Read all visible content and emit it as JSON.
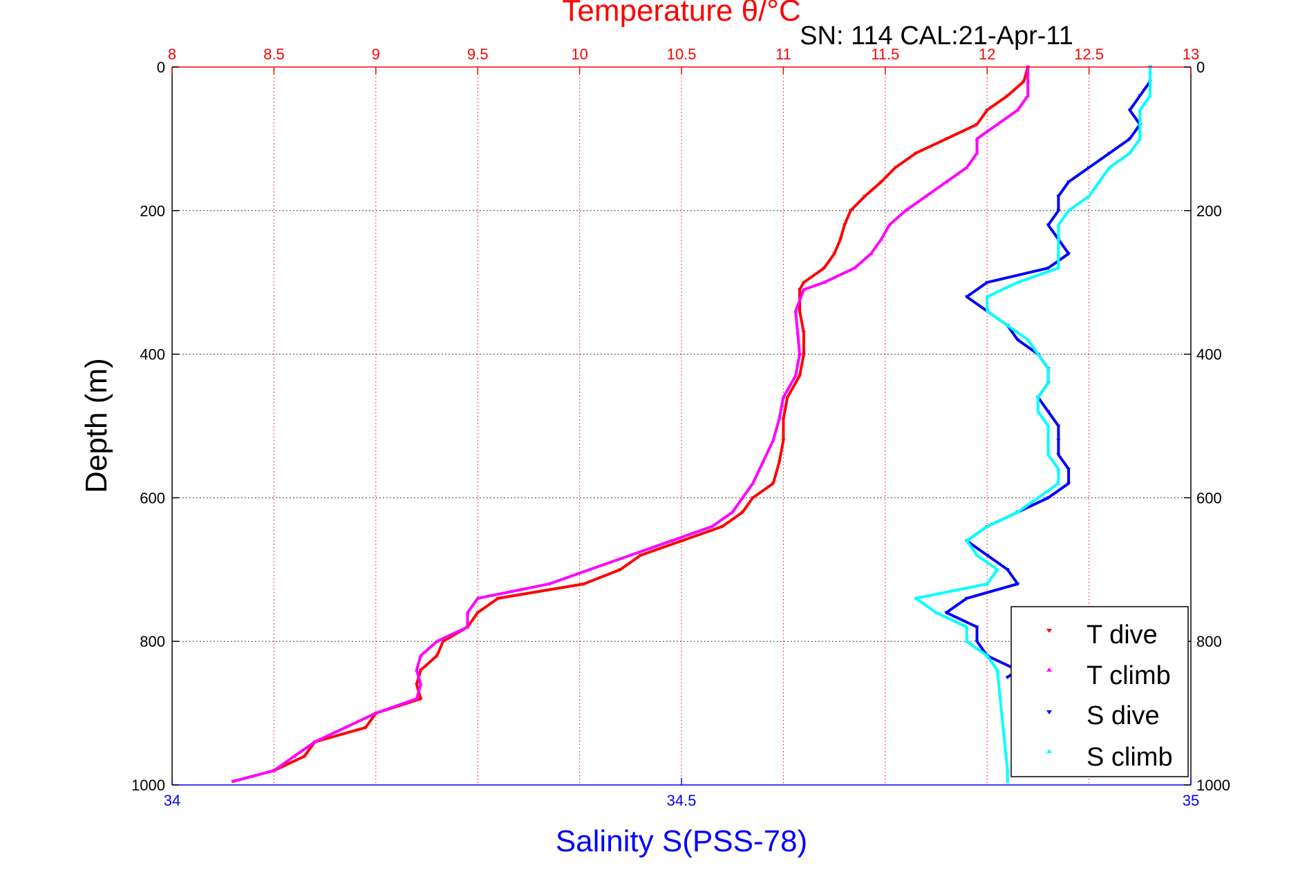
{
  "chart_data": {
    "type": "scatter",
    "title": "Temperature θ/°C",
    "subtitle": "SN: 114  CAL:21-Apr-11",
    "xlabel": "Salinity S(PSS-78)",
    "ylabel": "Depth (m)",
    "temperature_axis": {
      "label": "Temperature θ/°C",
      "range": [
        8,
        13
      ],
      "ticks": [
        8,
        8.5,
        9,
        9.5,
        10,
        10.5,
        11,
        11.5,
        12,
        12.5,
        13
      ],
      "tick_labels": [
        "8",
        "8.5",
        "9",
        "9.5",
        "10",
        "10.5",
        "11",
        "11.5",
        "12",
        "12.5",
        "13"
      ],
      "color": "#ff0000",
      "grid": true
    },
    "salinity_axis": {
      "label": "Salinity S(PSS-78)",
      "range": [
        34,
        35
      ],
      "ticks": [
        34,
        34.5,
        35
      ],
      "tick_labels": [
        "34",
        "34.5",
        "35"
      ],
      "color": "#0000ff"
    },
    "depth_axis": {
      "label": "Depth (m)",
      "range": [
        0,
        1000
      ],
      "reversed": true,
      "ticks": [
        0,
        200,
        400,
        600,
        800,
        1000
      ],
      "tick_labels": [
        "0",
        "200",
        "400",
        "600",
        "800",
        "1000"
      ],
      "grid": true
    },
    "legend": {
      "position": "bottom-right"
    },
    "series": [
      {
        "name": "T dive",
        "axis": "temperature",
        "color": "#ff0000",
        "marker": "triangle-down",
        "depth": [
          0,
          20,
          40,
          60,
          80,
          100,
          120,
          140,
          160,
          180,
          200,
          220,
          240,
          260,
          280,
          300,
          310,
          340,
          370,
          400,
          430,
          460,
          490,
          520,
          550,
          580,
          600,
          620,
          640,
          660,
          680,
          700,
          720,
          740,
          760,
          780,
          800,
          820,
          840,
          860,
          880,
          900,
          920,
          940,
          960,
          980,
          995
        ],
        "temp": [
          12.2,
          12.18,
          12.1,
          12.0,
          11.95,
          11.8,
          11.65,
          11.55,
          11.48,
          11.4,
          11.33,
          11.3,
          11.28,
          11.25,
          11.2,
          11.1,
          11.08,
          11.08,
          11.1,
          11.1,
          11.08,
          11.02,
          11.0,
          11.0,
          10.98,
          10.95,
          10.85,
          10.8,
          10.7,
          10.5,
          10.3,
          10.2,
          10.02,
          9.6,
          9.5,
          9.45,
          9.33,
          9.3,
          9.22,
          9.2,
          9.22,
          9.0,
          8.95,
          8.7,
          8.65,
          8.5,
          8.3
        ]
      },
      {
        "name": "T climb",
        "axis": "temperature",
        "color": "#ff00ff",
        "marker": "triangle-up",
        "depth": [
          0,
          20,
          40,
          60,
          80,
          100,
          120,
          140,
          160,
          180,
          200,
          220,
          240,
          260,
          280,
          300,
          310,
          340,
          370,
          400,
          430,
          460,
          490,
          520,
          550,
          580,
          600,
          620,
          640,
          660,
          680,
          700,
          720,
          740,
          760,
          780,
          800,
          820,
          840,
          860,
          880,
          900,
          920,
          940,
          960,
          980,
          995
        ],
        "temp": [
          12.2,
          12.2,
          12.2,
          12.15,
          12.05,
          11.95,
          11.95,
          11.9,
          11.8,
          11.7,
          11.6,
          11.52,
          11.48,
          11.43,
          11.35,
          11.2,
          11.1,
          11.06,
          11.07,
          11.08,
          11.06,
          11.0,
          10.98,
          10.95,
          10.9,
          10.85,
          10.8,
          10.75,
          10.65,
          10.45,
          10.25,
          10.05,
          9.85,
          9.5,
          9.45,
          9.45,
          9.3,
          9.22,
          9.2,
          9.22,
          9.2,
          9.0,
          8.85,
          8.7,
          8.6,
          8.5,
          8.3
        ]
      },
      {
        "name": "S dive",
        "axis": "salinity",
        "color": "#0000ff",
        "marker": "triangle-down",
        "depth": [
          0,
          20,
          40,
          60,
          80,
          100,
          120,
          140,
          160,
          180,
          200,
          220,
          240,
          260,
          280,
          300,
          320,
          340,
          360,
          380,
          400,
          420,
          440,
          460,
          480,
          500,
          520,
          540,
          560,
          580,
          600,
          620,
          640,
          660,
          680,
          700,
          720,
          740,
          760,
          780,
          800,
          820,
          840,
          850
        ],
        "sal": [
          34.96,
          34.96,
          34.95,
          34.94,
          34.95,
          34.94,
          34.92,
          34.9,
          34.88,
          34.87,
          34.87,
          34.86,
          34.87,
          34.88,
          34.86,
          34.8,
          34.78,
          34.8,
          34.82,
          34.83,
          34.85,
          34.86,
          34.86,
          34.85,
          34.86,
          34.87,
          34.87,
          34.87,
          34.88,
          34.88,
          34.86,
          34.83,
          34.8,
          34.78,
          34.8,
          34.82,
          34.83,
          34.78,
          34.76,
          34.79,
          34.79,
          34.8,
          34.83,
          34.82
        ]
      },
      {
        "name": "S climb",
        "axis": "salinity",
        "color": "#00ffff",
        "marker": "triangle-up",
        "depth": [
          0,
          20,
          40,
          60,
          80,
          100,
          120,
          140,
          160,
          180,
          200,
          220,
          240,
          260,
          280,
          300,
          320,
          340,
          360,
          380,
          400,
          420,
          440,
          460,
          480,
          500,
          520,
          540,
          560,
          580,
          600,
          620,
          640,
          660,
          680,
          700,
          720,
          740,
          760,
          780,
          800,
          820,
          840,
          980,
          995
        ],
        "sal": [
          34.96,
          34.96,
          34.96,
          34.95,
          34.95,
          34.95,
          34.94,
          34.92,
          34.91,
          34.9,
          34.88,
          34.87,
          34.87,
          34.87,
          34.87,
          34.83,
          34.8,
          34.8,
          34.82,
          34.84,
          34.85,
          34.86,
          34.86,
          34.85,
          34.85,
          34.86,
          34.86,
          34.86,
          34.87,
          34.87,
          34.85,
          34.83,
          34.8,
          34.78,
          34.79,
          34.81,
          34.8,
          34.73,
          34.75,
          34.78,
          34.78,
          34.8,
          34.81,
          34.82,
          34.82
        ]
      }
    ]
  }
}
